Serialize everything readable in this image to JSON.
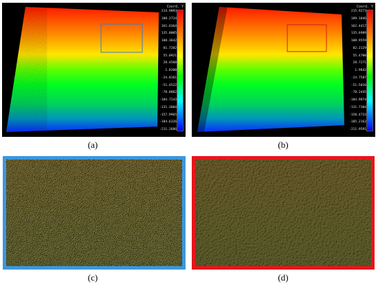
{
  "figure": {
    "panels": [
      {
        "id": "a",
        "caption": "(a)",
        "scale_title": "Coord. Y",
        "scale_labels": [
          "214.9093",
          "188.2724",
          "161.6364",
          "135.0005",
          "108.3642",
          "81.7282",
          "55.0921",
          "28.4560",
          "1.8200",
          "-24.8161",
          "-51.4522",
          "-78.0882",
          "-104.7243",
          "-131.3604",
          "-157.9965",
          "-184.6326",
          "-211.2686"
        ],
        "roi_color": "#2f7fcf"
      },
      {
        "id": "b",
        "caption": "(b)",
        "scale_title": "Coord. Y",
        "scale_labels": [
          "215.9273",
          "189.1846",
          "162.4417",
          "135.6989",
          "108.9559",
          "82.2129",
          "55.4700",
          "28.7271",
          "1.9842",
          "-24.7587",
          "-51.5016",
          "-78.2445",
          "-104.9874",
          "-131.7304",
          "-158.4733",
          "-185.2162",
          "-211.9591"
        ],
        "roi_color": "#d81a1a"
      }
    ],
    "zooms": [
      {
        "id": "c",
        "caption": "(c)",
        "border_color": "#3b97dd"
      },
      {
        "id": "d",
        "caption": "(d)",
        "border_color": "#e8151b"
      }
    ]
  }
}
